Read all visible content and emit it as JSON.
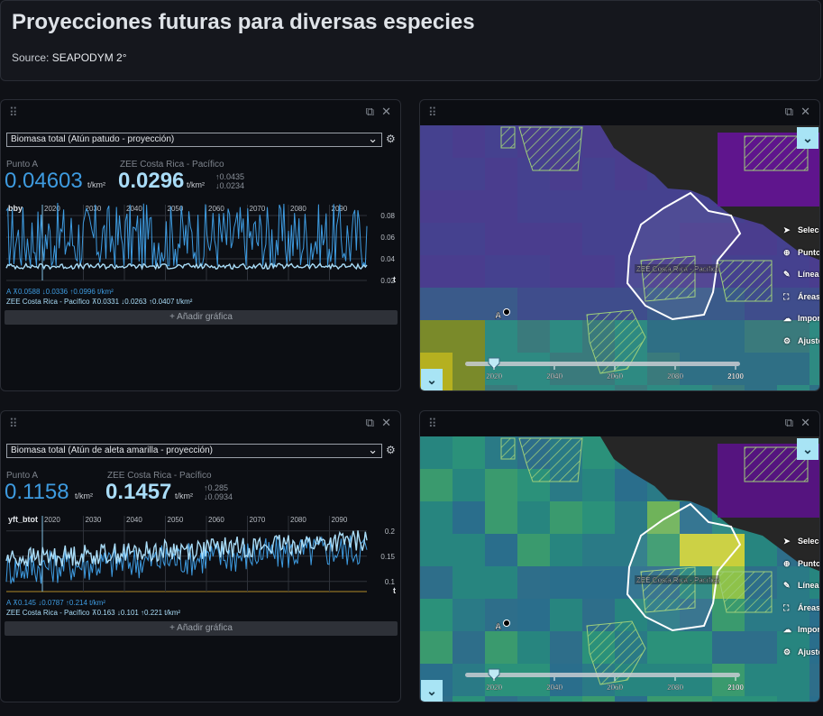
{
  "header": {
    "title": "Proyecciones futuras para diversas especies",
    "source_label": "Source:",
    "source_value": "SEAPODYM 2°"
  },
  "panels": [
    {
      "select": "Biomasa total (Atún patudo - proyección)",
      "point_label": "Punto A",
      "point_value": "0.04603",
      "unit": "t/km²",
      "zone_label": "ZEE Costa Rica - Pacífico",
      "zone_value": "0.0296",
      "zone_max": "↑0.0435",
      "zone_min": "↓0.0234",
      "chart_var": "bby",
      "legend_a": "A ⊼0.0588 ↓0.0336 ↑0.0996 t/km²",
      "legend_z_name": "ZEE Costa Rica - Pacífico",
      "legend_z_vals": "⊼0.0331 ↓0.0263 ↑0.0407 t/km²",
      "add": "+ Añadir gráfica"
    },
    {
      "select": "Biomasa total (Atún de aleta amarilla - proyección)",
      "point_label": "Punto A",
      "point_value": "0.1158",
      "unit": "t/km²",
      "zone_label": "ZEE Costa Rica - Pacífico",
      "zone_value": "0.1457",
      "zone_max": "↑0.285",
      "zone_min": "↓0.0934",
      "chart_var": "yft_btot",
      "legend_a": "A ⊼0.145 ↓0.0787 ↑0.214 t/km²",
      "legend_z_name": "ZEE Costa Rica - Pacífico",
      "legend_z_vals": "⊼0.163 ↓0.101 ↑0.221 t/km²",
      "add": "+ Añadir gráfica"
    }
  ],
  "chart_data": [
    {
      "type": "line",
      "x_ticks": [
        "2020",
        "2030",
        "2040",
        "2050",
        "2060",
        "2070",
        "2080",
        "2090"
      ],
      "y_ticks": [
        "0.08",
        "0.06",
        "0.04",
        "0.02"
      ],
      "x_axis_label": "t",
      "ylim": [
        0.02,
        0.09
      ],
      "series": [
        {
          "name": "A",
          "mean": 0.0588,
          "min": 0.0336,
          "max": 0.0996,
          "color": "#3e9be0"
        },
        {
          "name": "ZEE Costa Rica - Pacífico",
          "mean": 0.0331,
          "min": 0.0263,
          "max": 0.0407,
          "color": "#a9dcf7"
        }
      ]
    },
    {
      "type": "line",
      "x_ticks": [
        "2020",
        "2030",
        "2040",
        "2050",
        "2060",
        "2070",
        "2080",
        "2090"
      ],
      "y_ticks": [
        "0.2",
        "0.15",
        "0.1"
      ],
      "x_axis_label": "t",
      "ylim": [
        0.08,
        0.23
      ],
      "series": [
        {
          "name": "A",
          "mean": 0.145,
          "min": 0.0787,
          "max": 0.214,
          "color": "#3e9be0"
        },
        {
          "name": "ZEE Costa Rica - Pacífico",
          "mean": 0.163,
          "min": 0.101,
          "max": 0.221,
          "color": "#a9dcf7"
        }
      ]
    }
  ],
  "maps": [
    {
      "zone_label": "ZEE Costa Rica - Pacífico",
      "point": "A",
      "timeline": [
        "2020",
        "2040",
        "2060",
        "2080",
        "2100"
      ],
      "palette": "purple"
    },
    {
      "zone_label": "ZEE Costa Rica - Pacífico",
      "point": "A",
      "timeline": [
        "2020",
        "2040",
        "2060",
        "2080",
        "2100"
      ],
      "palette": "green"
    }
  ],
  "map_tools": [
    "Selecc.",
    "Puntos",
    "Líneas",
    "Áreas",
    "Importar",
    "Ajustes"
  ],
  "icons": {
    "drag": "drag-handle-icon",
    "copy": "copy-icon",
    "close": "close-icon",
    "gear": "gear-icon",
    "chevron": "chevron-down-icon"
  }
}
